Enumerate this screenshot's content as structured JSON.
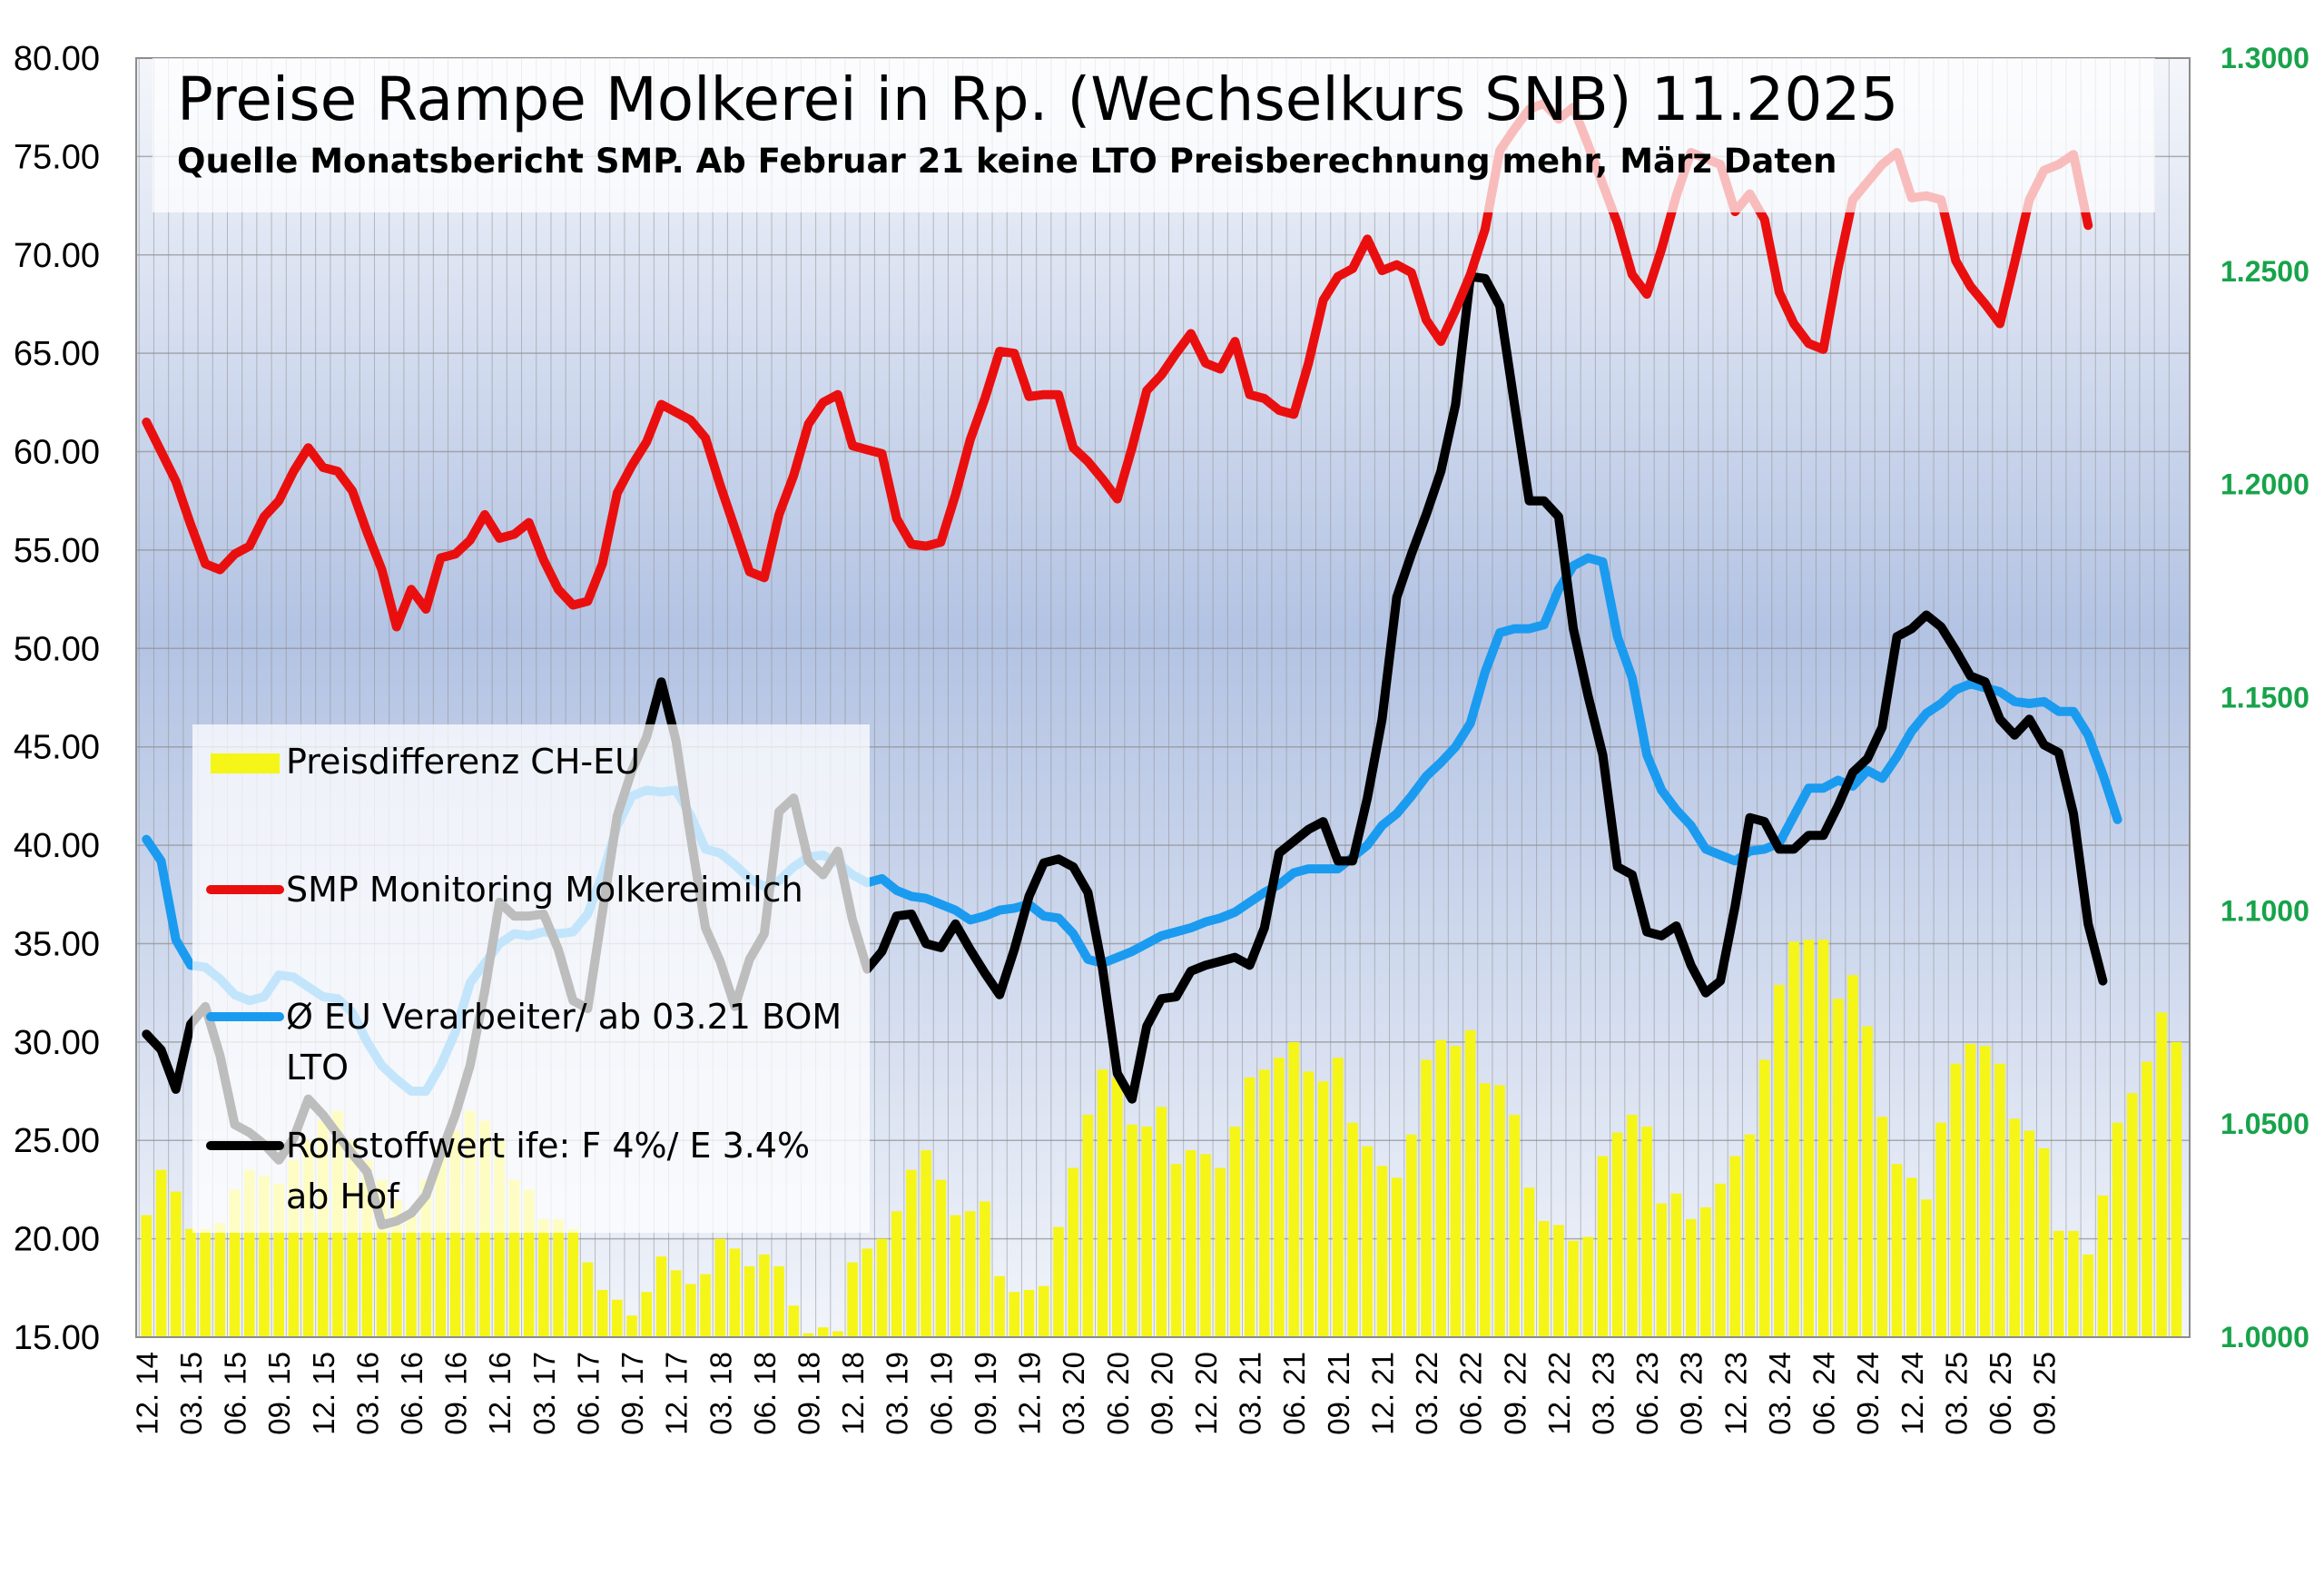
{
  "chart_data": {
    "type": "line",
    "title": "Preise Rampe Molkerei in Rp. (Wechselkurs SNB) 11.2025",
    "subtitle": "Quelle Monatsbericht  SMP. Ab Februar 21 keine LTO Preisberechnung mehr, März Daten",
    "xlabel": "",
    "ylabel": "",
    "ylim": [
      15,
      80
    ],
    "y_ticks": [
      "80.00",
      "75.00",
      "70.00",
      "65.00",
      "60.00",
      "55.00",
      "50.00",
      "45.00",
      "40.00",
      "35.00",
      "30.00",
      "25.00",
      "20.00",
      "15.00"
    ],
    "y2lim": [
      1.0,
      1.3
    ],
    "y2_ticks": [
      "1.3000",
      "1.2500",
      "1.2000",
      "1.1500",
      "1.1000",
      "1.0500",
      "1.0000"
    ],
    "x_start": "12.14",
    "x_ticks": [
      "12. 14",
      "03. 15",
      "06. 15",
      "09. 15",
      "12. 15",
      "03. 16",
      "06. 16",
      "09. 16",
      "12. 16",
      "03. 17",
      "06. 17",
      "09. 17",
      "12. 17",
      "03. 18",
      "06. 18",
      "09. 18",
      "12. 18",
      "03. 19",
      "06. 19",
      "09. 19",
      "12. 19",
      "03. 20",
      "06. 20",
      "09. 20",
      "12. 20",
      "03. 21",
      "06. 21",
      "09. 21",
      "12. 21",
      "03. 22",
      "06. 22",
      "09. 22",
      "12. 22",
      "03. 23",
      "06. 23",
      "09. 23",
      "12. 23",
      "03. 24",
      "06. 24",
      "09. 24",
      "12. 24",
      "03. 25",
      "06. 25",
      "09. 25"
    ],
    "grid": true,
    "legend_position": "middle-left",
    "series": [
      {
        "name": "Preisdifferenz CH-EU",
        "type": "bar",
        "color": "#f5f518",
        "values": [
          21.2,
          23.5,
          22.4,
          20.5,
          20.5,
          20.8,
          22.5,
          23.5,
          23.2,
          22.8,
          24.0,
          25.0,
          26.0,
          26.5,
          25.0,
          24.0,
          23.0,
          22.0,
          21.5,
          23.0,
          24.5,
          25.5,
          26.5,
          26.0,
          25.0,
          23.0,
          22.5,
          21.0,
          21.0,
          20.5,
          18.8,
          17.4,
          16.9,
          16.1,
          17.3,
          19.1,
          18.4,
          17.7,
          18.2,
          20.0,
          19.5,
          18.6,
          19.2,
          18.6,
          16.6,
          15.2,
          15.5,
          15.3,
          18.8,
          19.5,
          20.0,
          21.4,
          23.5,
          24.5,
          23.0,
          21.2,
          21.4,
          21.9,
          18.1,
          17.3,
          17.4,
          17.6,
          20.6,
          23.6,
          26.3,
          28.6,
          28.2,
          25.8,
          25.7,
          26.7,
          23.8,
          24.5,
          24.3,
          23.6,
          25.7,
          28.2,
          28.6,
          29.2,
          30.0,
          28.5,
          28.0,
          29.2,
          25.9,
          24.7,
          23.7,
          23.1,
          25.3,
          29.1,
          30.1,
          29.8,
          30.6,
          27.9,
          27.8,
          26.3,
          22.6,
          20.9,
          20.7,
          19.9,
          20.1,
          24.2,
          25.4,
          26.3,
          25.7,
          21.8,
          22.3,
          21.0,
          21.6,
          22.8,
          24.2,
          25.3,
          29.1,
          32.9,
          35.1,
          35.2,
          35.2,
          32.2,
          33.4,
          30.8,
          26.2,
          23.8,
          23.1,
          22.0,
          25.9,
          28.9,
          29.9,
          29.8,
          28.9,
          26.1,
          25.5,
          24.6,
          20.4,
          20.4,
          19.2,
          22.2,
          25.9,
          27.4,
          29.0,
          31.5,
          30.0
        ]
      },
      {
        "name": "SMP Monitoring Molkereimilch",
        "type": "line",
        "color": "#ea0f0f",
        "values": [
          61.5,
          60.0,
          58.5,
          56.3,
          54.3,
          54.0,
          54.8,
          55.2,
          56.7,
          57.5,
          59.0,
          60.2,
          59.2,
          59.0,
          58.0,
          55.9,
          54.0,
          51.1,
          53.0,
          52.0,
          54.6,
          54.8,
          55.5,
          56.8,
          55.6,
          55.8,
          56.4,
          54.5,
          53.0,
          52.2,
          52.4,
          54.3,
          57.9,
          59.3,
          60.5,
          62.4,
          62.0,
          61.6,
          60.7,
          58.3,
          56.1,
          53.9,
          53.6,
          56.8,
          58.8,
          61.4,
          62.5,
          62.9,
          60.3,
          60.1,
          59.9,
          56.6,
          55.3,
          55.2,
          55.4,
          57.8,
          60.6,
          62.7,
          65.1,
          65.0,
          62.8,
          62.9,
          62.9,
          60.2,
          59.5,
          58.6,
          57.6,
          60.2,
          63.1,
          63.9,
          65.0,
          66.0,
          64.5,
          64.2,
          65.6,
          62.9,
          62.7,
          62.1,
          61.9,
          64.5,
          67.7,
          68.9,
          69.3,
          70.8,
          69.2,
          69.5,
          69.1,
          66.7,
          65.6,
          67.2,
          69.0,
          71.3,
          75.3,
          76.4,
          77.4,
          77.7,
          76.9,
          77.5,
          75.6,
          73.6,
          71.6,
          69.0,
          68.0,
          70.3,
          73.0,
          75.2,
          74.9,
          74.6,
          72.2,
          73.1,
          71.8,
          68.1,
          66.5,
          65.5,
          65.2,
          69.3,
          72.8,
          73.7,
          74.6,
          75.2,
          72.9,
          73.0,
          72.8,
          69.7,
          68.4,
          67.5,
          66.5,
          69.6,
          72.8,
          74.3,
          74.6,
          75.1,
          71.5
        ]
      },
      {
        "name": "Ø EU Verarbeiter/ ab 03.21 BOM LTO",
        "type": "line",
        "color": "#1a9bf0",
        "values": [
          40.3,
          39.2,
          35.2,
          33.9,
          33.8,
          33.2,
          32.4,
          32.1,
          32.3,
          33.4,
          33.3,
          32.8,
          32.3,
          32.2,
          31.5,
          30.0,
          28.8,
          28.1,
          27.5,
          27.5,
          28.8,
          30.5,
          33.0,
          34.0,
          35.0,
          35.5,
          35.4,
          35.6,
          35.5,
          35.6,
          36.5,
          38.5,
          41.0,
          42.5,
          42.8,
          42.7,
          42.8,
          41.5,
          39.8,
          39.6,
          39.0,
          38.3,
          37.9,
          38.2,
          38.9,
          39.4,
          39.5,
          39.1,
          38.5,
          38.1,
          38.3,
          37.7,
          37.4,
          37.3,
          37.0,
          36.7,
          36.2,
          36.4,
          36.7,
          36.8,
          37.0,
          36.4,
          36.3,
          35.5,
          34.2,
          34.0,
          34.3,
          34.6,
          35.0,
          35.4,
          35.6,
          35.8,
          36.1,
          36.3,
          36.6,
          37.1,
          37.6,
          38.0,
          38.6,
          38.8,
          38.8,
          38.8,
          39.4,
          40.0,
          41.0,
          41.6,
          42.5,
          43.5,
          44.2,
          45.0,
          46.2,
          48.8,
          50.8,
          51.0,
          51.0,
          51.2,
          53.0,
          54.2,
          54.6,
          54.4,
          50.6,
          48.5,
          44.6,
          42.8,
          41.8,
          41.0,
          39.8,
          39.5,
          39.2,
          39.7,
          39.8,
          40.1,
          41.5,
          42.9,
          42.9,
          43.3,
          43.0,
          43.8,
          43.4,
          44.5,
          45.8,
          46.7,
          47.2,
          47.9,
          48.2,
          48.0,
          47.8,
          47.3,
          47.2,
          47.3,
          46.8,
          46.8,
          45.6,
          43.6,
          41.3
        ]
      },
      {
        "name": "Rohstoffwert ife: F 4%/ E 3.4% ab Hof",
        "type": "line",
        "color": "#000000",
        "values": [
          30.4,
          29.6,
          27.6,
          30.9,
          31.8,
          29.3,
          25.8,
          25.4,
          24.8,
          24.0,
          25.1,
          27.1,
          26.3,
          25.3,
          24.3,
          23.4,
          20.7,
          20.9,
          21.3,
          22.2,
          24.3,
          26.3,
          28.8,
          32.6,
          37.1,
          36.4,
          36.4,
          36.5,
          34.7,
          32.1,
          31.7,
          36.6,
          41.5,
          43.8,
          45.5,
          48.3,
          45.3,
          40.4,
          35.8,
          34.1,
          31.8,
          34.2,
          35.5,
          41.7,
          42.4,
          39.2,
          38.5,
          39.7,
          36.2,
          33.7,
          34.6,
          36.4,
          36.5,
          35.0,
          34.8,
          36.0,
          34.7,
          33.5,
          32.4,
          34.7,
          37.4,
          39.1,
          39.3,
          38.9,
          37.6,
          33.7,
          28.4,
          27.1,
          30.8,
          32.2,
          32.3,
          33.6,
          33.9,
          34.1,
          34.3,
          33.9,
          35.8,
          39.6,
          40.2,
          40.8,
          41.2,
          39.2,
          39.2,
          42.4,
          46.4,
          52.6,
          54.8,
          56.8,
          59.0,
          62.4,
          68.9,
          68.8,
          67.4,
          62.4,
          57.5,
          57.5,
          56.7,
          51.0,
          47.6,
          44.6,
          38.9,
          38.5,
          35.6,
          35.4,
          35.9,
          33.9,
          32.5,
          33.1,
          36.9,
          41.4,
          41.2,
          39.8,
          39.8,
          40.5,
          40.5,
          42.0,
          43.7,
          44.4,
          46.0,
          50.6,
          51.0,
          51.7,
          51.1,
          49.9,
          48.6,
          48.3,
          46.4,
          45.6,
          46.4,
          45.1,
          44.7,
          41.6,
          36.0,
          33.1
        ]
      }
    ]
  }
}
